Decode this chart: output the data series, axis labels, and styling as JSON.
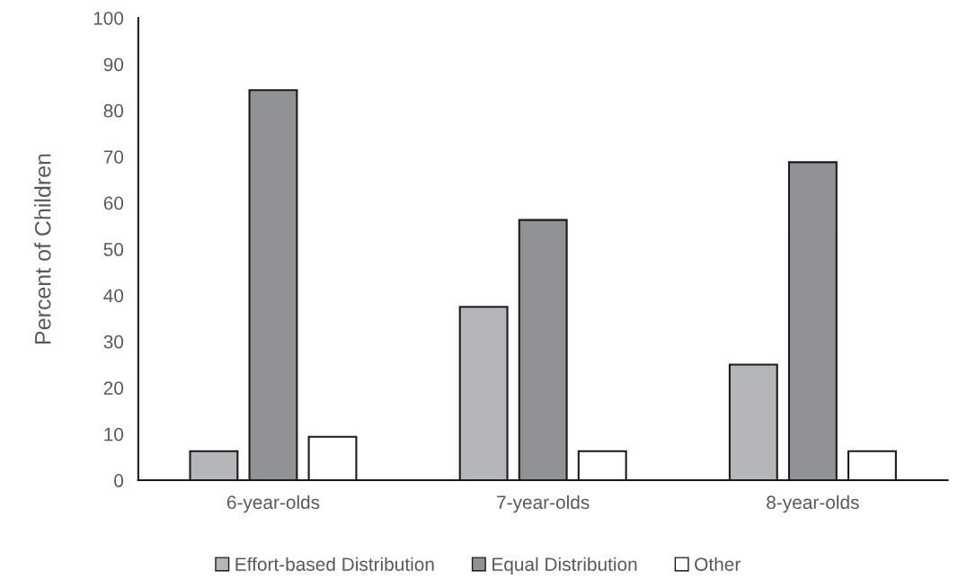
{
  "chart_data": {
    "type": "bar",
    "ylabel": "Percent of Children",
    "categories": [
      "6-year-olds",
      "7-year-olds",
      "8-year-olds"
    ],
    "series": [
      {
        "name": "Effort-based Distribution",
        "color": "#b5b6ba",
        "values": [
          6.3,
          37.5,
          25.0
        ]
      },
      {
        "name": "Equal Distribution",
        "color": "#919296",
        "values": [
          84.4,
          56.3,
          68.8
        ]
      },
      {
        "name": "Other",
        "color": "#ffffff",
        "values": [
          9.4,
          6.3,
          6.3
        ]
      }
    ],
    "ylim": [
      0,
      100
    ],
    "yticks": [
      0,
      10,
      20,
      30,
      40,
      50,
      60,
      70,
      80,
      90,
      100
    ],
    "grid": false,
    "legend": "bottom"
  }
}
